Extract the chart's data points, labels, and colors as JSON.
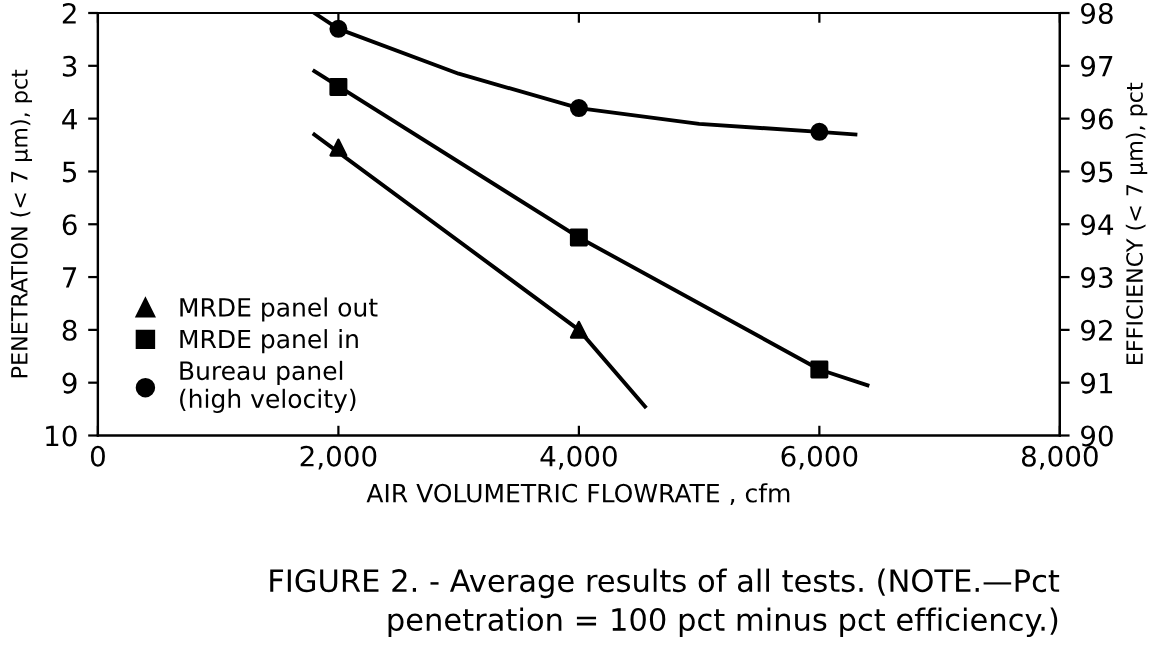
{
  "chart_data": {
    "type": "scatter",
    "xlabel": "AIR VOLUMETRIC FLOWRATE , cfm",
    "ylabel": "PENETRATION (< 7 µm), pct",
    "y2label": "EFFICIENCY (< 7 µm), pct",
    "xlim": [
      0,
      8000
    ],
    "xticks": [
      {
        "value": 0,
        "label": "0"
      },
      {
        "value": 2000,
        "label": "2,000"
      },
      {
        "value": 4000,
        "label": "4,000"
      },
      {
        "value": 6000,
        "label": "6,000"
      },
      {
        "value": 8000,
        "label": "8,000"
      }
    ],
    "ylim": [
      10,
      2
    ],
    "yticks": [
      2,
      3,
      4,
      5,
      6,
      7,
      8,
      9,
      10
    ],
    "y2lim": [
      90,
      98
    ],
    "y2ticks": [
      90,
      91,
      92,
      93,
      94,
      95,
      96,
      97,
      98
    ],
    "grid": false,
    "legend": "bottom left",
    "series": [
      {
        "name": "MRDE panel out",
        "marker": "triangle",
        "color": "#000000",
        "x": [
          2000,
          4000
        ],
        "values": [
          4.55,
          8.0
        ]
      },
      {
        "name": "MRDE panel in",
        "marker": "square",
        "color": "#000000",
        "x": [
          2000,
          4000,
          6000
        ],
        "values": [
          3.4,
          6.25,
          8.75
        ]
      },
      {
        "name": "Bureau panel\n(high velocity)",
        "marker": "circle",
        "color": "#000000",
        "x": [
          2000,
          4000,
          6000
        ],
        "values": [
          2.3,
          3.8,
          4.25
        ]
      },
      {
        "type": "line",
        "marker": "none",
        "line_style": "solid",
        "color": "#000000",
        "x": [
          1800,
          4000,
          4550
        ],
        "values": [
          4.3,
          8.0,
          9.45
        ]
      },
      {
        "type": "line",
        "marker": "none",
        "line_style": "solid",
        "color": "#000000",
        "x": [
          1800,
          4000,
          6000,
          6400
        ],
        "values": [
          3.1,
          6.25,
          8.75,
          9.05
        ]
      },
      {
        "type": "line",
        "marker": "none",
        "line_style": "solid",
        "color": "#000000",
        "x": [
          1800,
          2000,
          3000,
          4000,
          5000,
          6000,
          6300
        ],
        "values": [
          2.0,
          2.3,
          3.15,
          3.8,
          4.1,
          4.25,
          4.3
        ]
      }
    ],
    "annotations": [
      "FIGURE 2. - Average results of all tests. (NOTE.—Pct\npenetration = 100 pct minus pct efficiency.)"
    ]
  }
}
